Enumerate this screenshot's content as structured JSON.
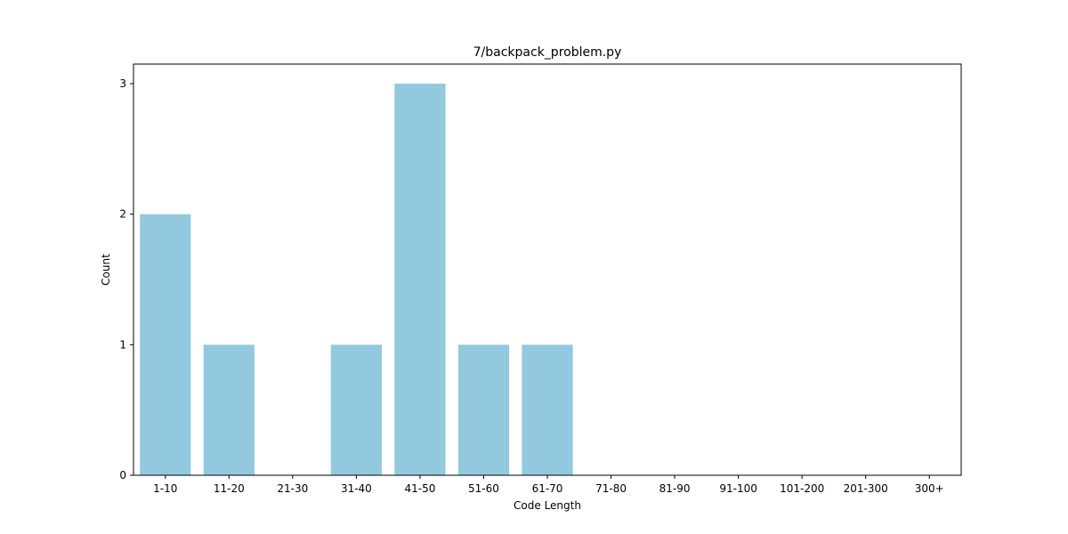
{
  "chart_data": {
    "type": "bar",
    "title": "7/backpack_problem.py",
    "xlabel": "Code Length",
    "ylabel": "Count",
    "categories": [
      "1-10",
      "11-20",
      "21-30",
      "31-40",
      "41-50",
      "51-60",
      "61-70",
      "71-80",
      "81-90",
      "91-100",
      "101-200",
      "201-300",
      "300+"
    ],
    "values": [
      2,
      1,
      0,
      1,
      3,
      1,
      1,
      0,
      0,
      0,
      0,
      0,
      0
    ],
    "yticks": [
      0,
      1,
      2,
      3
    ],
    "ylim": [
      0,
      3.15
    ],
    "grid": false,
    "bar_color": "#92c9df"
  }
}
